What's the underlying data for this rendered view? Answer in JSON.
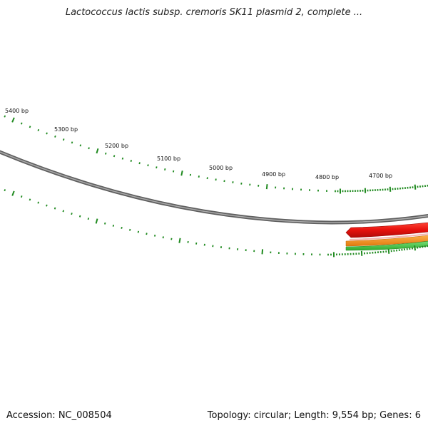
{
  "title": "Lactococcus lactis subsp. cremoris SK11 plasmid 2, complete ...",
  "footer": {
    "accession": "Accession: NC_008504",
    "summary": "Topology: circular; Length: 9,554 bp; Genes: 6"
  },
  "scale_labels": [
    "5400 bp",
    "5300 bp",
    "5200 bp",
    "5100 bp",
    "5000 bp",
    "4900 bp",
    "4800 bp",
    "4700 bp"
  ],
  "colors": {
    "backbone": "#808080",
    "ticks": "#1f8a1f",
    "feature_red": "#e8120e",
    "feature_orange": "#f08a1a",
    "feature_green": "#3cc43c"
  }
}
